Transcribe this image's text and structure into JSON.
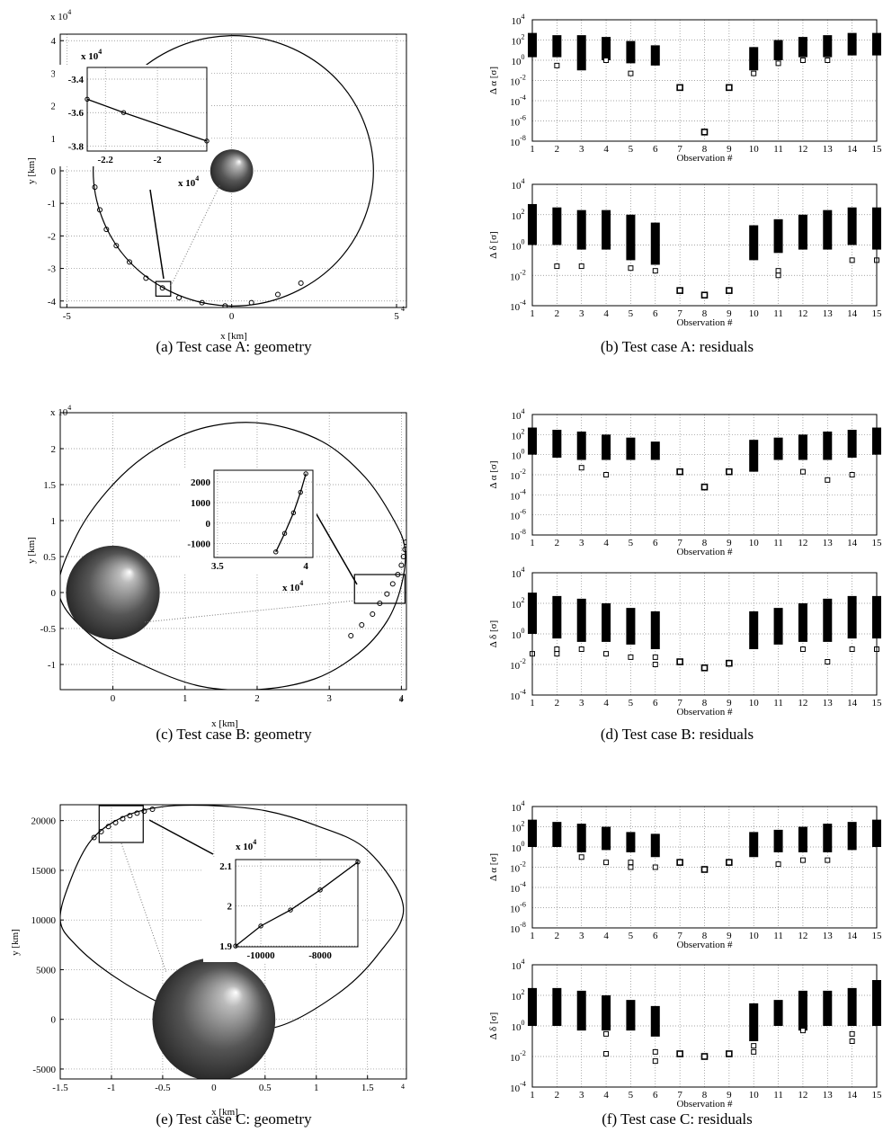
{
  "chart_data": [
    {
      "type": "geometry",
      "xlabel": "x [km]",
      "ylabel": "y [km]",
      "y_multiplier": {
        "base": "x 10",
        "exponent": "4"
      },
      "x_multiplier": {
        "exponent": "4"
      },
      "grid": true,
      "xlim": [
        -5.2,
        5.3
      ],
      "ylim": [
        -4.2,
        4.2
      ],
      "xticks": [
        -5,
        0,
        5
      ],
      "yticks": [
        -4,
        -3,
        -2,
        -1,
        0,
        1,
        2,
        3,
        4
      ],
      "orbit_x": [
        4.3,
        4.04,
        3.31,
        2.18,
        0.79,
        -0.69,
        -2.08,
        -3.21,
        -3.94,
        -4.2,
        -3.94,
        -3.21,
        -2.08,
        -0.69,
        0.79,
        2.18,
        3.31,
        4.04
      ],
      "orbit_y": [
        0,
        1.42,
        2.67,
        3.59,
        4.09,
        4.09,
        3.59,
        2.67,
        1.42,
        0,
        -1.42,
        -2.67,
        -3.59,
        -4.09,
        -4.09,
        -3.59,
        -2.67,
        -1.42
      ],
      "obs_x": [
        -4.2,
        -4.15,
        -4.0,
        -3.8,
        -3.5,
        -3.1,
        -2.6,
        -2.1,
        -1.6,
        -0.9,
        -0.2,
        0.6,
        1.4,
        2.1
      ],
      "obs_y": [
        0.3,
        -0.5,
        -1.2,
        -1.8,
        -2.3,
        -2.8,
        -3.3,
        -3.6,
        -3.9,
        -4.05,
        -4.15,
        -4.05,
        -3.8,
        -3.45
      ],
      "body": {
        "x": 0,
        "y": 0,
        "r": 0.65
      },
      "zoom_box": {
        "xlim": [
          -2.3,
          -1.85
        ],
        "ylim": [
          -3.85,
          -3.4
        ]
      },
      "inset": {
        "xlim": [
          -2.27,
          -1.81
        ],
        "ylim": [
          -3.83,
          -3.33
        ],
        "xticks": [
          -2.2,
          -2
        ],
        "yticks": [
          -3.4,
          -3.6,
          -3.8
        ],
        "line_x": [
          -2.27,
          -2.13,
          -1.81
        ],
        "line_y": [
          -3.52,
          -3.6,
          -3.77
        ],
        "y_multiplier": {
          "base": "x 10",
          "exponent": "4"
        },
        "x_multiplier": {
          "base": "x 10",
          "exponent": "4"
        }
      },
      "caption": "(a)  Test case A: geometry"
    },
    {
      "type": "range",
      "ylabel": "Δ α [σ]",
      "xlabel": "Observation #",
      "log_y": true,
      "grid": true,
      "x": [
        1,
        2,
        3,
        4,
        5,
        6,
        7,
        8,
        9,
        10,
        11,
        12,
        13,
        14,
        15
      ],
      "xlim": [
        1,
        15
      ],
      "xticks": [
        1,
        2,
        3,
        4,
        5,
        6,
        7,
        8,
        9,
        10,
        11,
        12,
        13,
        14,
        15
      ],
      "ylim": [
        1e-08,
        10000
      ],
      "yticks": [
        {
          "value": 10000,
          "label": "10",
          "exponent": "4"
        },
        {
          "value": 100,
          "label": "10",
          "exponent": "2"
        },
        {
          "value": 1,
          "label": "10",
          "exponent": "0"
        },
        {
          "value": 0.01,
          "label": "10",
          "exponent": "-2"
        },
        {
          "value": 0.0001,
          "label": "10",
          "exponent": "-4"
        },
        {
          "value": 1e-06,
          "label": "10",
          "exponent": "-6"
        },
        {
          "value": 1e-08,
          "label": "10",
          "exponent": "-8"
        }
      ],
      "low": [
        2,
        2,
        0.1,
        1,
        0.5,
        0.3,
        0.002,
        8e-08,
        0.002,
        0.1,
        1,
        2,
        2,
        3,
        3
      ],
      "high": [
        500,
        300,
        300,
        200,
        80,
        30,
        0.002,
        8e-08,
        0.002,
        20,
        100,
        200,
        300,
        500,
        500
      ],
      "points_x": [
        2,
        4,
        5,
        10,
        11,
        12,
        13
      ],
      "points_y": [
        0.3,
        1,
        0.05,
        0.05,
        0.5,
        1,
        1
      ],
      "caption": "(b)  Test case A: residuals"
    },
    {
      "type": "range",
      "ylabel": "Δ δ [σ]",
      "xlabel": "Observation #",
      "log_y": true,
      "grid": true,
      "x": [
        1,
        2,
        3,
        4,
        5,
        6,
        7,
        8,
        9,
        10,
        11,
        12,
        13,
        14,
        15
      ],
      "xlim": [
        1,
        15
      ],
      "xticks": [
        1,
        2,
        3,
        4,
        5,
        6,
        7,
        8,
        9,
        10,
        11,
        12,
        13,
        14,
        15
      ],
      "ylim": [
        0.0001,
        10000
      ],
      "yticks": [
        {
          "value": 10000,
          "label": "10",
          "exponent": "4"
        },
        {
          "value": 100,
          "label": "10",
          "exponent": "2"
        },
        {
          "value": 1,
          "label": "10",
          "exponent": "0"
        },
        {
          "value": 0.01,
          "label": "10",
          "exponent": "-2"
        },
        {
          "value": 0.0001,
          "label": "10",
          "exponent": "-4"
        }
      ],
      "low": [
        1,
        1,
        0.5,
        0.5,
        0.1,
        0.05,
        0.001,
        0.0005,
        0.001,
        0.1,
        0.3,
        0.5,
        0.5,
        1,
        0.5
      ],
      "high": [
        500,
        300,
        200,
        200,
        100,
        30,
        0.001,
        0.0005,
        0.001,
        20,
        50,
        100,
        200,
        300,
        300
      ],
      "points_x": [
        2,
        3,
        5,
        6,
        11,
        11,
        14,
        15
      ],
      "points_y": [
        0.04,
        0.04,
        0.03,
        0.02,
        0.02,
        0.01,
        0.1,
        0.1
      ]
    },
    {
      "type": "geometry",
      "xlabel": "x [km]",
      "ylabel": "y [km]",
      "y_multiplier": {
        "base": "x 10",
        "exponent": "4"
      },
      "x_multiplier": {
        "exponent": "4"
      },
      "grid": true,
      "xlim": [
        -0.73,
        4.07
      ],
      "ylim": [
        -1.35,
        2.5
      ],
      "xticks": [
        0,
        1,
        2,
        3,
        4
      ],
      "yticks": [
        -1,
        -0.5,
        0,
        0.5,
        1,
        1.5,
        2
      ],
      "orbit_x": [
        -0.75,
        -0.5,
        0,
        0.6,
        1.3,
        2.1,
        2.9,
        3.5,
        3.9,
        4.05,
        4.0,
        3.8,
        3.4,
        2.8,
        2.0,
        1.2,
        0.4,
        -0.3
      ],
      "orbit_y": [
        0.0,
        0.8,
        1.5,
        2.0,
        2.3,
        2.35,
        2.1,
        1.6,
        1.0,
        0.6,
        0.1,
        -0.4,
        -0.85,
        -1.2,
        -1.35,
        -1.3,
        -1.0,
        -0.6
      ],
      "obs_x": [
        3.3,
        3.45,
        3.6,
        3.7,
        3.8,
        3.88,
        3.95,
        4.0,
        4.03,
        4.05,
        4.06
      ],
      "obs_y": [
        -0.6,
        -0.45,
        -0.3,
        -0.15,
        -0.02,
        0.12,
        0.25,
        0.38,
        0.5,
        0.6,
        0.7
      ],
      "body": {
        "x": 0,
        "y": 0,
        "r": 0.65
      },
      "zoom_box": {
        "xlim": [
          3.35,
          4.05
        ],
        "ylim": [
          -0.15,
          0.25
        ]
      },
      "inset": {
        "xlim": [
          3.48,
          4.04
        ],
        "ylim": [
          -1670,
          2570
        ],
        "xticks": [
          3.5,
          4
        ],
        "yticks": [
          2000,
          1000,
          0,
          -1000
        ],
        "line_x": [
          3.83,
          3.88,
          3.93,
          3.97,
          4.0
        ],
        "line_y": [
          -1400,
          -500,
          500,
          1500,
          2400
        ],
        "x_multiplier": {
          "base": "x 10",
          "exponent": "4"
        }
      },
      "caption": "(c)  Test case B: geometry"
    },
    {
      "type": "range",
      "ylabel": "Δ α [σ]",
      "xlabel": "Observation #",
      "log_y": true,
      "grid": true,
      "x": [
        1,
        2,
        3,
        4,
        5,
        6,
        7,
        8,
        9,
        10,
        11,
        12,
        13,
        14,
        15
      ],
      "xlim": [
        1,
        15
      ],
      "xticks": [
        1,
        2,
        3,
        4,
        5,
        6,
        7,
        8,
        9,
        10,
        11,
        12,
        13,
        14,
        15
      ],
      "ylim": [
        1e-08,
        10000
      ],
      "yticks": [
        {
          "value": 10000,
          "label": "10",
          "exponent": "4"
        },
        {
          "value": 100,
          "label": "10",
          "exponent": "2"
        },
        {
          "value": 1,
          "label": "10",
          "exponent": "0"
        },
        {
          "value": 0.01,
          "label": "10",
          "exponent": "-2"
        },
        {
          "value": 0.0001,
          "label": "10",
          "exponent": "-4"
        },
        {
          "value": 1e-06,
          "label": "10",
          "exponent": "-6"
        },
        {
          "value": 1e-08,
          "label": "10",
          "exponent": "-8"
        }
      ],
      "low": [
        1,
        0.5,
        0.3,
        0.3,
        0.3,
        0.3,
        0.02,
        0.0006,
        0.02,
        0.02,
        0.3,
        0.3,
        0.3,
        0.5,
        1
      ],
      "high": [
        500,
        300,
        200,
        100,
        50,
        20,
        0.02,
        0.0006,
        0.02,
        30,
        50,
        100,
        200,
        300,
        500
      ],
      "points_x": [
        3,
        4,
        12,
        13,
        14
      ],
      "points_y": [
        0.05,
        0.01,
        0.02,
        0.003,
        0.01
      ],
      "caption": "(d)  Test case B: residuals"
    },
    {
      "type": "range",
      "ylabel": "Δ δ [σ]",
      "xlabel": "Observation #",
      "log_y": true,
      "grid": true,
      "x": [
        1,
        2,
        3,
        4,
        5,
        6,
        7,
        8,
        9,
        10,
        11,
        12,
        13,
        14,
        15
      ],
      "xlim": [
        1,
        15
      ],
      "xticks": [
        1,
        2,
        3,
        4,
        5,
        6,
        7,
        8,
        9,
        10,
        11,
        12,
        13,
        14,
        15
      ],
      "ylim": [
        0.0001,
        10000
      ],
      "yticks": [
        {
          "value": 10000,
          "label": "10",
          "exponent": "4"
        },
        {
          "value": 100,
          "label": "10",
          "exponent": "2"
        },
        {
          "value": 1,
          "label": "10",
          "exponent": "0"
        },
        {
          "value": 0.01,
          "label": "10",
          "exponent": "-2"
        },
        {
          "value": 0.0001,
          "label": "10",
          "exponent": "-4"
        }
      ],
      "low": [
        1,
        0.5,
        0.3,
        0.3,
        0.2,
        0.1,
        0.015,
        0.006,
        0.012,
        0.1,
        0.2,
        0.3,
        0.3,
        0.5,
        0.5
      ],
      "high": [
        500,
        300,
        200,
        100,
        50,
        30,
        0.015,
        0.006,
        0.012,
        30,
        50,
        100,
        200,
        300,
        300
      ],
      "points_x": [
        1,
        2,
        2,
        3,
        4,
        5,
        6,
        6,
        12,
        13,
        14,
        15
      ],
      "points_y": [
        0.05,
        0.1,
        0.05,
        0.1,
        0.05,
        0.03,
        0.03,
        0.01,
        0.1,
        0.015,
        0.1,
        0.1
      ]
    },
    {
      "type": "geometry",
      "xlabel": "x [km]",
      "ylabel": "y [km]",
      "x_multiplier": {
        "exponent": "4"
      },
      "grid": true,
      "xlim": [
        -1.5,
        1.88
      ],
      "ylim": [
        -6000,
        21600
      ],
      "xticks": [
        -1.5,
        -1,
        -0.5,
        0,
        0.5,
        1,
        1.5
      ],
      "yticks": [
        -5000,
        0,
        5000,
        10000,
        15000,
        20000
      ],
      "orbit_x": [
        -1.5,
        -1.4,
        -1.2,
        -0.9,
        -0.5,
        0,
        0.5,
        1.0,
        1.5,
        1.85,
        1.6,
        1.2,
        0.6,
        0,
        -0.5,
        -1.0,
        -1.35
      ],
      "orbit_y": [
        10000,
        14000,
        18000,
        20300,
        21400,
        21500,
        21000,
        19500,
        17000,
        11300,
        6500,
        2500,
        -800,
        -500,
        1500,
        4500,
        7500
      ],
      "obs_x": [
        -1.17,
        -1.1,
        -1.03,
        -0.96,
        -0.89,
        -0.82,
        -0.75,
        -0.68,
        -0.6
      ],
      "obs_y": [
        18300,
        18900,
        19400,
        19800,
        20200,
        20500,
        20750,
        20950,
        21150
      ],
      "body": {
        "x": 0,
        "y": 0,
        "r": 0.6
      },
      "zoom_box": {
        "xlim": [
          -1.12,
          -0.69
        ],
        "ylim": [
          17800,
          21500
        ]
      },
      "inset": {
        "xlim": [
          -10850,
          -6730
        ],
        "ylim": [
          1.898,
          2.116
        ],
        "xticks": [
          -10000,
          -8000
        ],
        "yticks": [
          2.1,
          2,
          1.9
        ],
        "line_x": [
          -10850,
          -10000,
          -9000,
          -8000,
          -6730
        ],
        "line_y": [
          1.9,
          1.95,
          1.99,
          2.04,
          2.11
        ],
        "y_multiplier": {
          "base": "x 10",
          "exponent": "4"
        }
      },
      "caption": "(e)  Test case C: geometry"
    },
    {
      "type": "range",
      "ylabel": "Δ α [σ]",
      "xlabel": "Observation #",
      "log_y": true,
      "grid": true,
      "x": [
        1,
        2,
        3,
        4,
        5,
        6,
        7,
        8,
        9,
        10,
        11,
        12,
        13,
        14,
        15
      ],
      "xlim": [
        1,
        15
      ],
      "xticks": [
        1,
        2,
        3,
        4,
        5,
        6,
        7,
        8,
        9,
        10,
        11,
        12,
        13,
        14,
        15
      ],
      "ylim": [
        1e-08,
        10000
      ],
      "yticks": [
        {
          "value": 10000,
          "label": "10",
          "exponent": "4"
        },
        {
          "value": 100,
          "label": "10",
          "exponent": "2"
        },
        {
          "value": 1,
          "label": "10",
          "exponent": "0"
        },
        {
          "value": 0.01,
          "label": "10",
          "exponent": "-2"
        },
        {
          "value": 0.0001,
          "label": "10",
          "exponent": "-4"
        },
        {
          "value": 1e-06,
          "label": "10",
          "exponent": "-6"
        },
        {
          "value": 1e-08,
          "label": "10",
          "exponent": "-8"
        }
      ],
      "low": [
        1,
        1,
        0.3,
        0.5,
        0.3,
        0.1,
        0.03,
        0.006,
        0.03,
        0.1,
        0.3,
        0.3,
        0.3,
        0.5,
        1
      ],
      "high": [
        500,
        300,
        200,
        100,
        30,
        20,
        0.03,
        0.006,
        0.03,
        30,
        50,
        100,
        200,
        300,
        500
      ],
      "points_x": [
        3,
        4,
        5,
        5,
        6,
        11,
        12,
        13
      ],
      "points_y": [
        0.1,
        0.03,
        0.03,
        0.01,
        0.01,
        0.02,
        0.05,
        0.05
      ],
      "caption": "(f)  Test case C: residuals"
    },
    {
      "type": "range",
      "ylabel": "Δ δ [σ]",
      "xlabel": "Observation #",
      "log_y": true,
      "grid": true,
      "x": [
        1,
        2,
        3,
        4,
        5,
        6,
        7,
        8,
        9,
        10,
        11,
        12,
        13,
        14,
        15
      ],
      "xlim": [
        1,
        15
      ],
      "xticks": [
        1,
        2,
        3,
        4,
        5,
        6,
        7,
        8,
        9,
        10,
        11,
        12,
        13,
        14,
        15
      ],
      "ylim": [
        0.0001,
        10000
      ],
      "yticks": [
        {
          "value": 10000,
          "label": "10",
          "exponent": "4"
        },
        {
          "value": 100,
          "label": "10",
          "exponent": "2"
        },
        {
          "value": 1,
          "label": "10",
          "exponent": "0"
        },
        {
          "value": 0.01,
          "label": "10",
          "exponent": "-2"
        },
        {
          "value": 0.0001,
          "label": "10",
          "exponent": "-4"
        }
      ],
      "low": [
        1,
        1,
        0.5,
        0.5,
        0.5,
        0.2,
        0.015,
        0.01,
        0.015,
        0.1,
        1,
        0.5,
        1,
        1,
        1
      ],
      "high": [
        300,
        300,
        200,
        100,
        50,
        20,
        0.015,
        0.01,
        0.015,
        30,
        50,
        200,
        200,
        300,
        1000
      ],
      "points_x": [
        4,
        4,
        6,
        6,
        10,
        10,
        12,
        14,
        14
      ],
      "points_y": [
        0.3,
        0.015,
        0.02,
        0.005,
        0.05,
        0.02,
        0.5,
        0.3,
        0.1
      ]
    }
  ]
}
